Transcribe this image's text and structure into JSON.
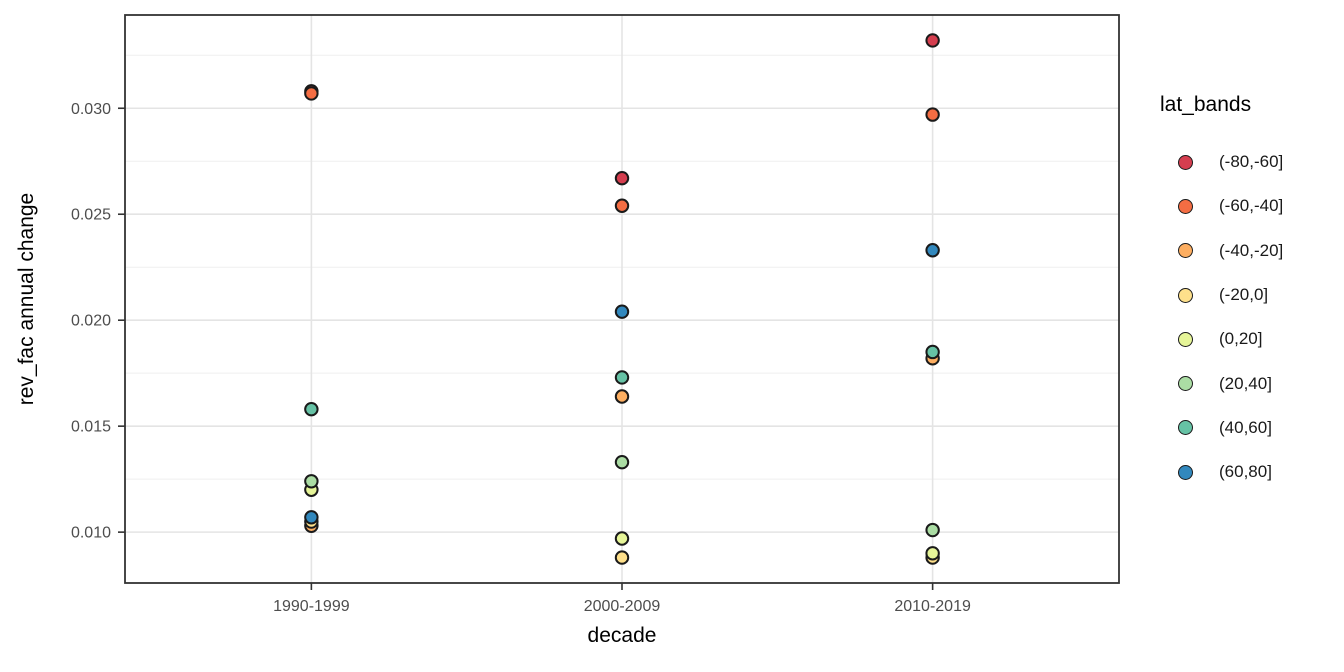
{
  "chart_data": {
    "type": "scatter",
    "title": "",
    "xlabel": "decade",
    "ylabel": "rev_fac annual change",
    "categories": [
      "1990-1999",
      "2000-2009",
      "2010-2019"
    ],
    "series": [
      {
        "name": "(-80,-60]",
        "color": "#D53E4F",
        "values": [
          0.0308,
          0.0267,
          0.0332
        ]
      },
      {
        "name": "(-60,-40]",
        "color": "#F46D43",
        "values": [
          0.0307,
          0.0254,
          0.0297
        ]
      },
      {
        "name": "(-40,-20]",
        "color": "#FDAE61",
        "values": [
          0.0103,
          0.0164,
          0.0182
        ]
      },
      {
        "name": "(-20,0]",
        "color": "#FEE08B",
        "values": [
          0.0105,
          0.0088,
          0.0088
        ]
      },
      {
        "name": "(0,20]",
        "color": "#E6F598",
        "values": [
          0.012,
          0.0097,
          0.009
        ]
      },
      {
        "name": "(20,40]",
        "color": "#ABDDA4",
        "values": [
          0.0124,
          0.0133,
          0.0101
        ]
      },
      {
        "name": "(40,60]",
        "color": "#66C2A5",
        "values": [
          0.0158,
          0.0173,
          0.0185
        ]
      },
      {
        "name": "(60,80]",
        "color": "#3288BD",
        "values": [
          0.0107,
          0.0204,
          0.0233
        ]
      }
    ],
    "ylim": [
      0.0076,
      0.0344
    ],
    "yticks": {
      "values": [
        0.01,
        0.015,
        0.02,
        0.025,
        0.03
      ],
      "labels": [
        "0.010",
        "0.015",
        "0.020",
        "0.025",
        "0.030"
      ]
    },
    "yminor": [
      0.0125,
      0.0175,
      0.0225,
      0.0275,
      0.0325
    ],
    "grid": true,
    "legend": {
      "title": "lat_bands",
      "position": "right"
    },
    "style": {
      "panel_bg": "#ffffff",
      "panel_border": "#333333",
      "grid_major": "#e4e4e4",
      "grid_minor": "#efefef",
      "tick_color": "#333333",
      "tick_label_color": "#4d4d4d",
      "point_outline": "#1a1a1a"
    }
  }
}
